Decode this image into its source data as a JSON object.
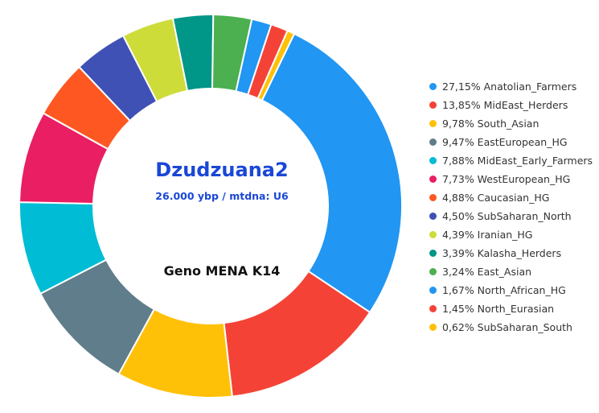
{
  "chart_data": {
    "type": "pie",
    "variant": "donut",
    "title": "Dzudzuana2",
    "subtitle": "26.000 ybp / mtdna: U6",
    "footer": "Geno MENA K14",
    "legend_position": "right",
    "slices": [
      {
        "label": "27,15% Anatolian_Farmers",
        "value": 27.15,
        "color": "#2196f3"
      },
      {
        "label": "13,85% MidEast_Herders",
        "value": 13.85,
        "color": "#f44336"
      },
      {
        "label": "9,78% South_Asian",
        "value": 9.78,
        "color": "#ffc107"
      },
      {
        "label": "9,47% EastEuropean_HG",
        "value": 9.47,
        "color": "#607d8b"
      },
      {
        "label": "7,88% MidEast_Early_Farmers",
        "value": 7.88,
        "color": "#00bcd4"
      },
      {
        "label": "7,73% WestEuropean_HG",
        "value": 7.73,
        "color": "#e91e63"
      },
      {
        "label": "4,88% Caucasian_HG",
        "value": 4.88,
        "color": "#ff5722"
      },
      {
        "label": "4,50% SubSaharan_North",
        "value": 4.5,
        "color": "#3f51b5"
      },
      {
        "label": "4,39% Iranian_HG",
        "value": 4.39,
        "color": "#cddc39"
      },
      {
        "label": "3,39% Kalasha_Herders",
        "value": 3.39,
        "color": "#009688"
      },
      {
        "label": "3,24% East_Asian",
        "value": 3.24,
        "color": "#4caf50"
      },
      {
        "label": "1,67% North_African_HG",
        "value": 1.67,
        "color": "#2196f3"
      },
      {
        "label": "1,45% North_Eurasian",
        "value": 1.45,
        "color": "#f44336"
      },
      {
        "label": "0,62% SubSaharan_South",
        "value": 0.62,
        "color": "#ffc107"
      }
    ]
  }
}
